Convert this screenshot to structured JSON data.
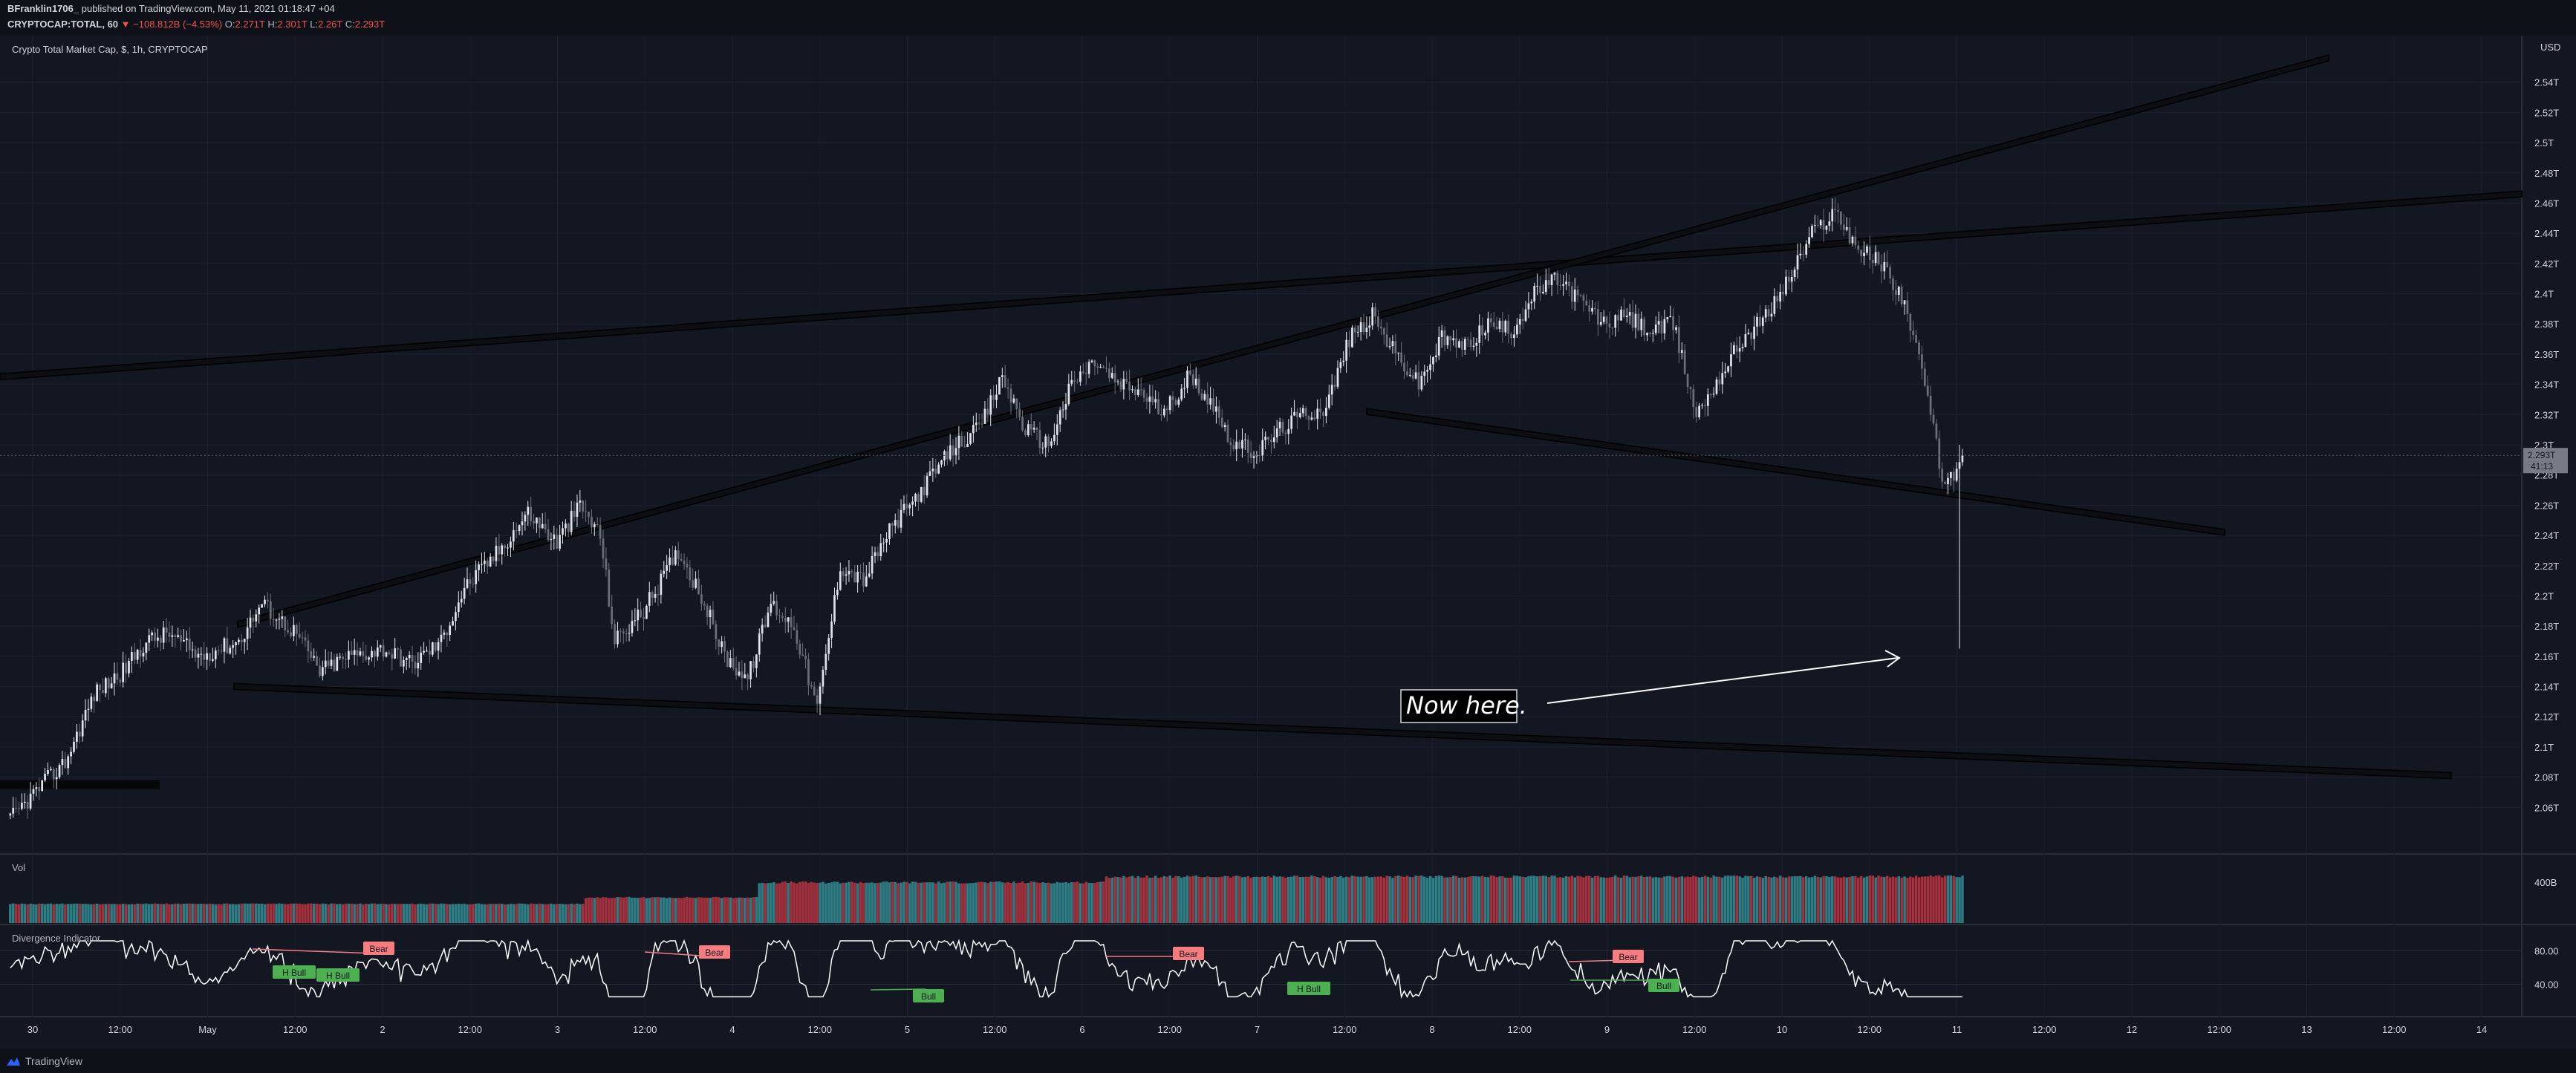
{
  "header": {
    "user": "BFranklin1706_",
    "published": "published on TradingView.com, May 11, 2021 01:18:47 +04",
    "symbol": "CRYPTOCAP:TOTAL, 60",
    "change": "▼ −108.812B (−4.53%)",
    "o_label": "O:",
    "o_value": "2.271T",
    "h_label": "H:",
    "h_value": "2.301T",
    "l_label": "L:",
    "l_value": "2.26T",
    "c_label": "C:",
    "c_value": "2.293T"
  },
  "footer": {
    "brand": "TradingView"
  },
  "colors": {
    "background": "#131722",
    "grid": "#1e2230",
    "candle_up": "#e0e3eb",
    "candle_down": "#6b6f7a",
    "vol_up": "#2e7d84",
    "vol_down": "#a3303d",
    "bear": "#f77c80",
    "bull": "#4caf50",
    "text": "#d1d4dc"
  },
  "chart_data": [
    {
      "type": "candlestick",
      "title": "Crypto Total Market Cap, $, 1h, CRYPTOCAP",
      "currency": "USD",
      "ylim": [
        2.04,
        2.56
      ],
      "y_ticks": [
        "2.54T",
        "2.52T",
        "2.5T",
        "2.48T",
        "2.46T",
        "2.44T",
        "2.42T",
        "2.4T",
        "2.38T",
        "2.36T",
        "2.34T",
        "2.32T",
        "2.3T",
        "2.28T",
        "2.26T",
        "2.24T",
        "2.22T",
        "2.2T",
        "2.18T",
        "2.16T",
        "2.14T",
        "2.12T",
        "2.1T",
        "2.08T",
        "2.06T"
      ],
      "x_ticks": [
        "30",
        "12:00",
        "May",
        "12:00",
        "2",
        "12:00",
        "3",
        "12:00",
        "4",
        "12:00",
        "5",
        "12:00",
        "6",
        "12:00",
        "7",
        "12:00",
        "8",
        "12:00",
        "9",
        "12:00",
        "10",
        "12:00",
        "11",
        "12:00",
        "12",
        "12:00",
        "13",
        "12:00",
        "14"
      ],
      "last_price_label": "2.293T",
      "countdown_label": "41:13",
      "close_path": [
        [
          0,
          2.05
        ],
        [
          12,
          2.075
        ],
        [
          20,
          2.09
        ],
        [
          30,
          2.135
        ],
        [
          40,
          2.15
        ],
        [
          48,
          2.17
        ],
        [
          56,
          2.175
        ],
        [
          66,
          2.16
        ],
        [
          80,
          2.17
        ],
        [
          88,
          2.195
        ],
        [
          100,
          2.175
        ],
        [
          108,
          2.15
        ],
        [
          118,
          2.16
        ],
        [
          130,
          2.165
        ],
        [
          140,
          2.155
        ],
        [
          150,
          2.17
        ],
        [
          158,
          2.205
        ],
        [
          170,
          2.23
        ],
        [
          180,
          2.255
        ],
        [
          190,
          2.235
        ],
        [
          198,
          2.26
        ],
        [
          205,
          2.24
        ],
        [
          210,
          2.17
        ],
        [
          220,
          2.19
        ],
        [
          232,
          2.23
        ],
        [
          240,
          2.2
        ],
        [
          248,
          2.16
        ],
        [
          256,
          2.145
        ],
        [
          264,
          2.195
        ],
        [
          272,
          2.18
        ],
        [
          280,
          2.125
        ],
        [
          288,
          2.22
        ],
        [
          296,
          2.21
        ],
        [
          304,
          2.24
        ],
        [
          312,
          2.26
        ],
        [
          320,
          2.28
        ],
        [
          328,
          2.3
        ],
        [
          336,
          2.31
        ],
        [
          344,
          2.345
        ],
        [
          352,
          2.31
        ],
        [
          360,
          2.3
        ],
        [
          368,
          2.34
        ],
        [
          376,
          2.355
        ],
        [
          384,
          2.34
        ],
        [
          392,
          2.335
        ],
        [
          400,
          2.32
        ],
        [
          408,
          2.345
        ],
        [
          416,
          2.33
        ],
        [
          424,
          2.3
        ],
        [
          432,
          2.295
        ],
        [
          440,
          2.31
        ],
        [
          448,
          2.32
        ],
        [
          456,
          2.325
        ],
        [
          464,
          2.37
        ],
        [
          472,
          2.385
        ],
        [
          480,
          2.36
        ],
        [
          488,
          2.34
        ],
        [
          496,
          2.37
        ],
        [
          504,
          2.365
        ],
        [
          512,
          2.38
        ],
        [
          520,
          2.375
        ],
        [
          528,
          2.4
        ],
        [
          536,
          2.41
        ],
        [
          544,
          2.395
        ],
        [
          552,
          2.38
        ],
        [
          560,
          2.385
        ],
        [
          568,
          2.375
        ],
        [
          576,
          2.38
        ],
        [
          584,
          2.32
        ],
        [
          592,
          2.345
        ],
        [
          600,
          2.37
        ],
        [
          608,
          2.385
        ],
        [
          616,
          2.41
        ],
        [
          624,
          2.44
        ],
        [
          632,
          2.455
        ],
        [
          640,
          2.43
        ],
        [
          648,
          2.42
        ],
        [
          656,
          2.395
        ],
        [
          664,
          2.33
        ],
        [
          670,
          2.27
        ],
        [
          676,
          2.293
        ]
      ]
    },
    {
      "type": "bar",
      "title": "Vol",
      "y_ticks": [
        "400B"
      ]
    },
    {
      "type": "line",
      "title": "Divergence Indicator",
      "y_ticks": [
        "80.00",
        "40.00"
      ],
      "labels": [
        "Bear",
        "Bear",
        "Bear",
        "Bear",
        "H Bull",
        "H Bull",
        "Bull",
        "H Bull",
        "Bull"
      ]
    }
  ],
  "annotations": {
    "note": "Now here."
  }
}
